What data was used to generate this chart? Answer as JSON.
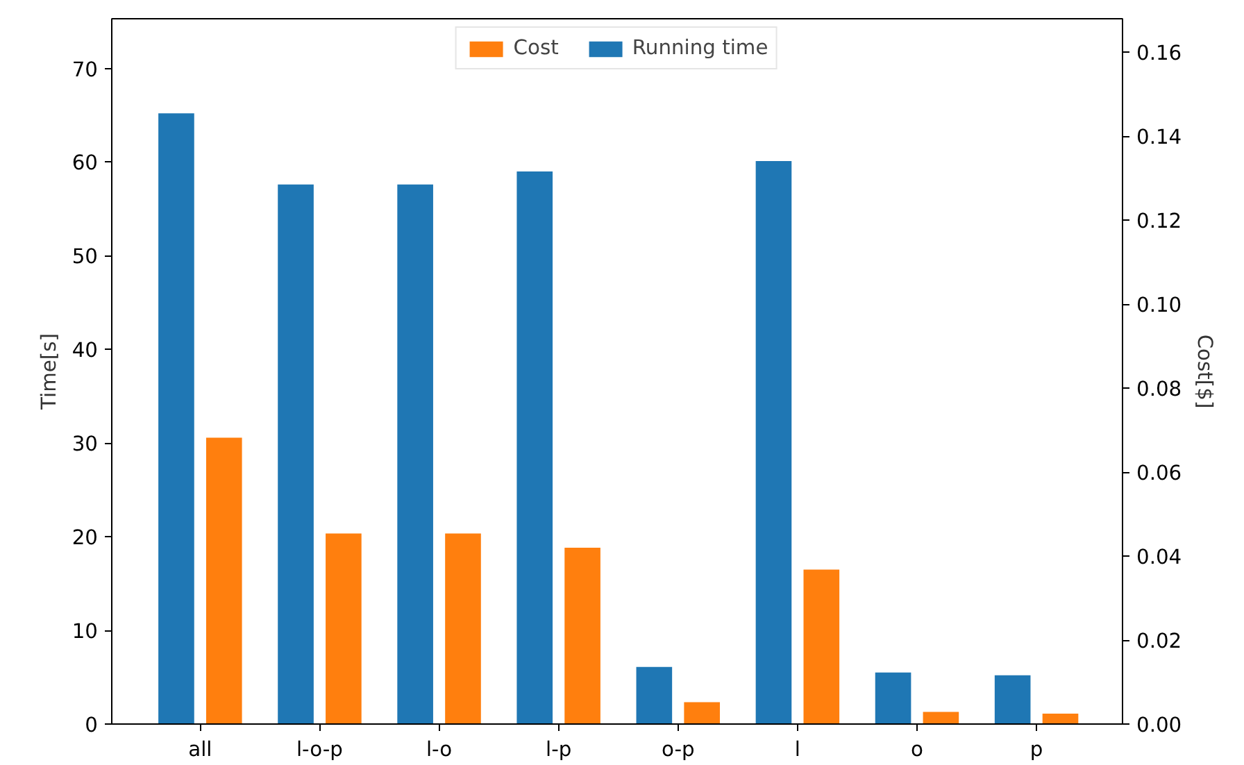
{
  "chart_data": {
    "type": "bar",
    "xlabel": null,
    "ylabel": "Time[s]",
    "y2label": "Cost[$]",
    "categories": [
      "all",
      "l-o-p",
      "l-o",
      "l-p",
      "o-p",
      "l",
      "o",
      "p"
    ],
    "series": [
      {
        "name": "Running time",
        "color": "#1f77b4",
        "values": [
          65.2,
          57.6,
          57.6,
          59.0,
          6.1,
          60.1,
          5.5,
          5.2
        ]
      },
      {
        "name": "Cost",
        "color": "#ff7f0e",
        "axis": "y2",
        "values": [
          0.0682,
          0.0454,
          0.0454,
          0.042,
          0.0052,
          0.0368,
          0.0029,
          0.0025
        ]
      }
    ],
    "ylim": [
      0,
      75.3
    ],
    "yticks": [
      0,
      10,
      20,
      30,
      40,
      50,
      60,
      70
    ],
    "y2lim": [
      0,
      0.168
    ],
    "y2ticks": [
      {
        "value": 0,
        "label": "0.00"
      },
      {
        "value": 0.02,
        "label": "0.02"
      },
      {
        "value": 0.04,
        "label": "0.04"
      },
      {
        "value": 0.06,
        "label": "0.06"
      },
      {
        "value": 0.08,
        "label": "0.08"
      },
      {
        "value": 0.1,
        "label": "0.10"
      },
      {
        "value": 0.12,
        "label": "0.12"
      },
      {
        "value": 0.14,
        "label": "0.14"
      },
      {
        "value": 0.16,
        "label": "0.16"
      }
    ],
    "grid": false,
    "legend": "top"
  }
}
